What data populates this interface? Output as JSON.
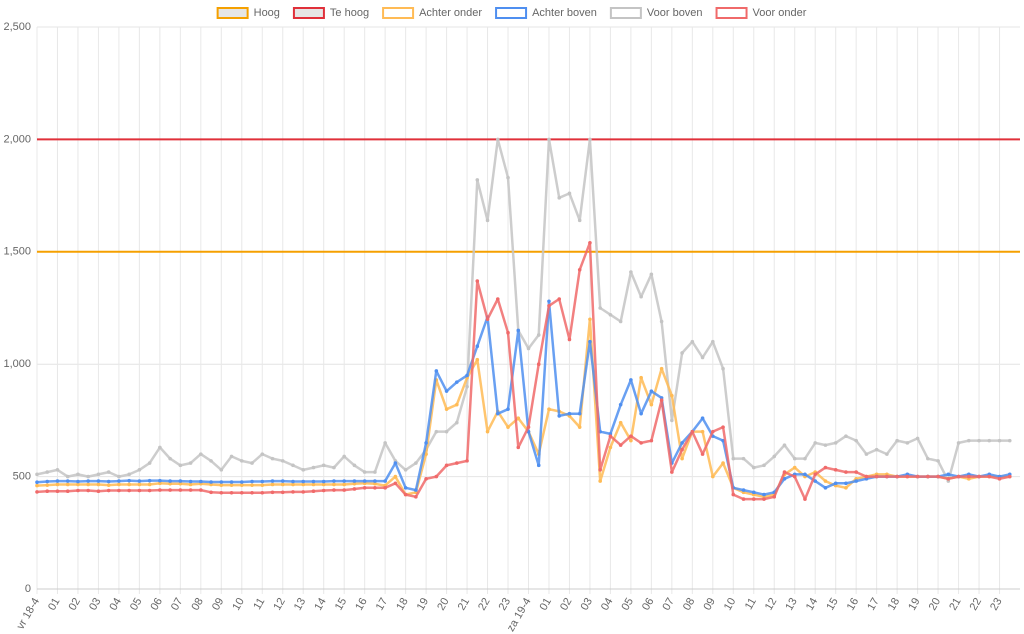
{
  "chart_data": {
    "type": "line",
    "thresholds": [
      {
        "name": "Hoog",
        "value": 1500,
        "color": "#f5a000"
      },
      {
        "name": "Te hoog",
        "value": 2000,
        "color": "#e0303a"
      }
    ],
    "categories": [
      "vr 18-4",
      null,
      "01",
      null,
      "02",
      null,
      "03",
      null,
      "04",
      null,
      "05",
      null,
      "06",
      null,
      "07",
      null,
      "08",
      null,
      "09",
      null,
      "10",
      null,
      "11",
      null,
      "12",
      null,
      "13",
      null,
      "14",
      null,
      "15",
      null,
      "16",
      null,
      "17",
      null,
      "18",
      null,
      "19",
      null,
      "20",
      null,
      "21",
      null,
      "22",
      null,
      "23",
      null,
      "za 19-4",
      null,
      "01",
      null,
      "02",
      null,
      "03",
      null,
      "04",
      null,
      "05",
      null,
      "06",
      null,
      "07",
      null,
      "08",
      null,
      "09",
      null,
      "10",
      null,
      "11",
      null,
      "12",
      null,
      "13",
      null,
      "14",
      null,
      "15",
      null,
      "16",
      null,
      "17",
      null,
      "18",
      null,
      "19",
      null,
      "20",
      null,
      "21",
      null,
      "22",
      null,
      "23",
      null
    ],
    "series": [
      {
        "name": "Achter onder",
        "color": "#ffbb55",
        "values": [
          460,
          462,
          465,
          465,
          465,
          465,
          465,
          462,
          465,
          465,
          465,
          465,
          470,
          468,
          468,
          465,
          468,
          465,
          462,
          462,
          462,
          462,
          462,
          465,
          465,
          465,
          465,
          465,
          465,
          465,
          465,
          468,
          470,
          468,
          460,
          500,
          420,
          430,
          600,
          930,
          800,
          820,
          940,
          1020,
          700,
          790,
          720,
          760,
          700,
          600,
          800,
          790,
          770,
          720,
          1200,
          480,
          630,
          740,
          660,
          940,
          820,
          980,
          860,
          580,
          700,
          700,
          500,
          560,
          450,
          430,
          420,
          410,
          420,
          510,
          540,
          500,
          520,
          480,
          460,
          450,
          490,
          500,
          510,
          510,
          500,
          500,
          500,
          500,
          500,
          490,
          500,
          490,
          500,
          500,
          500,
          500
        ]
      },
      {
        "name": "Achter boven",
        "color": "#4f8ff0",
        "values": [
          475,
          478,
          480,
          480,
          478,
          480,
          480,
          478,
          480,
          482,
          480,
          482,
          482,
          480,
          480,
          478,
          478,
          476,
          476,
          476,
          476,
          478,
          478,
          480,
          480,
          478,
          478,
          478,
          478,
          480,
          480,
          480,
          480,
          480,
          480,
          560,
          450,
          440,
          650,
          970,
          880,
          920,
          950,
          1080,
          1210,
          780,
          800,
          1150,
          700,
          550,
          1280,
          770,
          780,
          780,
          1100,
          700,
          690,
          820,
          930,
          780,
          880,
          850,
          560,
          650,
          700,
          760,
          680,
          660,
          450,
          440,
          430,
          420,
          430,
          490,
          510,
          510,
          480,
          450,
          470,
          470,
          480,
          490,
          500,
          500,
          500,
          510,
          500,
          500,
          500,
          510,
          500,
          510,
          500,
          510,
          500,
          510
        ]
      },
      {
        "name": "Voor boven",
        "color": "#c4c4c4",
        "values": [
          510,
          520,
          530,
          500,
          510,
          500,
          510,
          520,
          500,
          510,
          530,
          560,
          630,
          580,
          550,
          560,
          600,
          570,
          530,
          590,
          570,
          560,
          600,
          580,
          570,
          550,
          530,
          540,
          550,
          540,
          590,
          550,
          520,
          520,
          650,
          570,
          530,
          560,
          620,
          700,
          700,
          740,
          900,
          1820,
          1640,
          2000,
          1830,
          1150,
          1070,
          1130,
          2000,
          1740,
          1760,
          1640,
          2000,
          1250,
          1220,
          1190,
          1410,
          1300,
          1400,
          1190,
          750,
          1050,
          1100,
          1030,
          1100,
          980,
          580,
          580,
          540,
          550,
          590,
          640,
          580,
          580,
          650,
          640,
          650,
          680,
          660,
          600,
          620,
          600,
          660,
          650,
          670,
          580,
          570,
          480,
          650,
          660,
          660,
          660,
          660,
          660
        ]
      },
      {
        "name": "Voor onder",
        "color": "#f06a6a",
        "values": [
          432,
          435,
          435,
          435,
          438,
          438,
          435,
          438,
          438,
          438,
          438,
          438,
          440,
          440,
          440,
          440,
          440,
          430,
          428,
          428,
          428,
          428,
          428,
          430,
          430,
          432,
          432,
          435,
          438,
          440,
          440,
          445,
          450,
          450,
          450,
          470,
          420,
          410,
          490,
          500,
          550,
          560,
          570,
          1370,
          1200,
          1290,
          1140,
          630,
          720,
          1000,
          1260,
          1290,
          1110,
          1420,
          1540,
          530,
          680,
          640,
          680,
          650,
          660,
          840,
          520,
          620,
          700,
          600,
          700,
          720,
          420,
          400,
          400,
          400,
          410,
          520,
          500,
          400,
          510,
          540,
          530,
          520,
          520,
          500,
          500,
          500,
          500,
          500,
          500,
          500,
          500,
          490,
          500,
          500,
          500,
          500,
          490,
          500
        ]
      }
    ],
    "ylim": [
      0,
      2500
    ],
    "yticks": [
      0,
      500,
      {
        "value": 1000,
        "label": "1,000"
      },
      {
        "value": 1500,
        "label": "1,500"
      },
      {
        "value": 2000,
        "label": "2,000"
      },
      {
        "value": 2500,
        "label": "2,500"
      }
    ],
    "grid": true,
    "legend": "top"
  }
}
